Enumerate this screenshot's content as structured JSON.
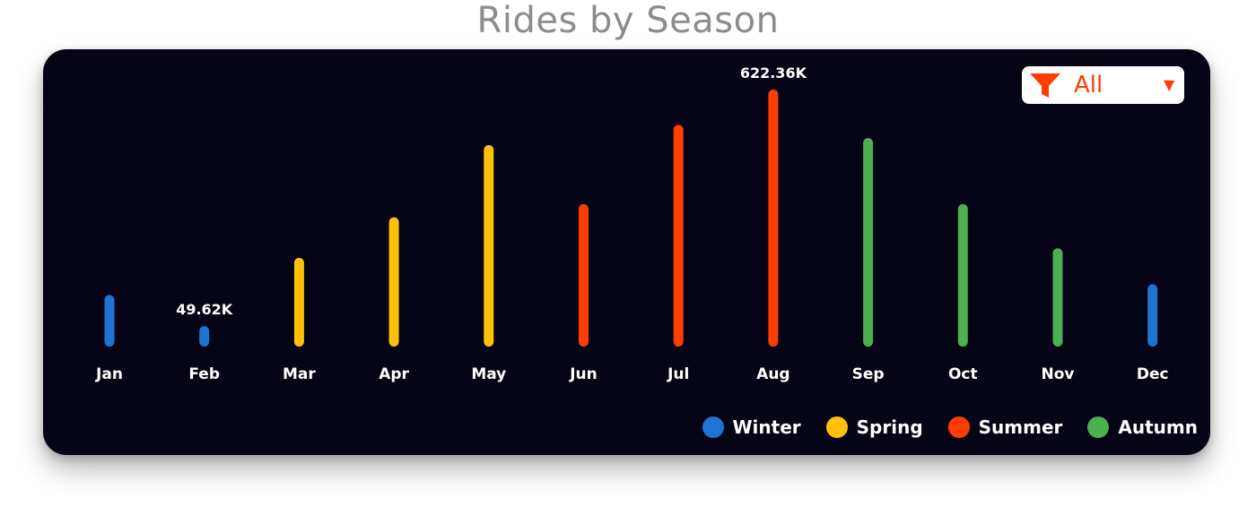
{
  "page": {
    "title": "Rides by Season"
  },
  "filter": {
    "selected": "All",
    "icon": "funnel-icon",
    "caret_icon": "caret-down-icon"
  },
  "colors": {
    "Winter": "#1e74d2",
    "Spring": "#ffc107",
    "Summer": "#ff3d00",
    "Autumn": "#4caf50",
    "background": "#060417"
  },
  "chart_data": {
    "type": "bar",
    "title": "Rides by Season",
    "xlabel": "",
    "ylabel": "",
    "ylim": [
      0,
      622360
    ],
    "grid": false,
    "legend_placement": "bottom-right",
    "categories": [
      "Jan",
      "Feb",
      "Mar",
      "Apr",
      "May",
      "Jun",
      "Jul",
      "Aug",
      "Sep",
      "Oct",
      "Nov",
      "Dec"
    ],
    "values": [
      125000,
      49620,
      215000,
      313000,
      488000,
      345000,
      537000,
      622360,
      505000,
      345000,
      238000,
      151000
    ],
    "seasons": [
      "Winter",
      "Winter",
      "Spring",
      "Spring",
      "Spring",
      "Summer",
      "Summer",
      "Summer",
      "Autumn",
      "Autumn",
      "Autumn",
      "Winter"
    ],
    "data_labels": [
      {
        "index": 1,
        "text": "49.62K"
      },
      {
        "index": 7,
        "text": "622.36K"
      }
    ],
    "legend": [
      "Winter",
      "Spring",
      "Summer",
      "Autumn"
    ]
  }
}
